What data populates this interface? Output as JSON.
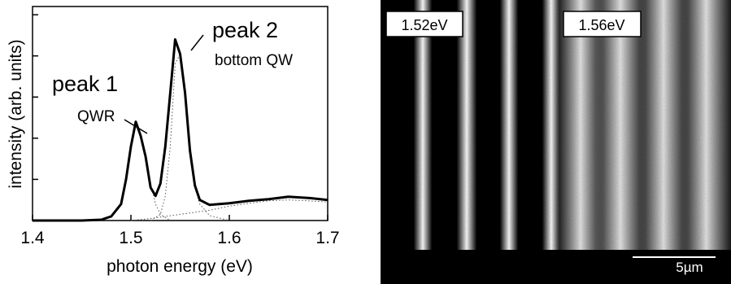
{
  "left_panel": {
    "ylabel": "intensity (arb. units)",
    "xlabel": "photon energy (eV)",
    "annotations": [
      {
        "label": "peak 1",
        "sublabel": "QWR"
      },
      {
        "label": "peak 2",
        "sublabel": "bottom QW"
      }
    ]
  },
  "right_panel": {
    "image_labels": [
      "1.52eV",
      "1.56eV"
    ],
    "scalebar_label": "5µm"
  },
  "chart_data": {
    "type": "line",
    "title": "",
    "xlabel": "photon energy (eV)",
    "ylabel": "intensity (arb. units)",
    "xlim": [
      1.4,
      1.7
    ],
    "ylim": [
      0,
      5.2
    ],
    "x_ticks": [
      1.4,
      1.5,
      1.6,
      1.7
    ],
    "tick_labels": [
      "1.4",
      "1.5",
      "1.6",
      "1.7"
    ],
    "y_tick_values": [
      1,
      2,
      3,
      4,
      5
    ],
    "grid": false,
    "series": [
      {
        "style": "solid-thick",
        "x": [
          1.4,
          1.45,
          1.47,
          1.48,
          1.49,
          1.495,
          1.5,
          1.505,
          1.51,
          1.515,
          1.52,
          1.525,
          1.53,
          1.535,
          1.54,
          1.545,
          1.55,
          1.555,
          1.56,
          1.565,
          1.57,
          1.58,
          1.6,
          1.62,
          1.64,
          1.66,
          1.68,
          1.7
        ],
        "y": [
          0.0,
          0.0,
          0.02,
          0.1,
          0.4,
          1.0,
          1.8,
          2.4,
          2.05,
          1.55,
          0.8,
          0.6,
          0.9,
          1.8,
          3.1,
          4.4,
          4.05,
          3.1,
          1.7,
          0.85,
          0.5,
          0.38,
          0.42,
          0.48,
          0.52,
          0.58,
          0.55,
          0.5
        ]
      },
      {
        "style": "dotted-fit",
        "x": [
          1.47,
          1.48,
          1.49,
          1.495,
          1.5,
          1.505,
          1.51,
          1.515,
          1.52,
          1.525,
          1.53,
          1.54
        ],
        "y": [
          0.0,
          0.1,
          0.4,
          1.0,
          1.8,
          2.4,
          2.05,
          1.5,
          0.9,
          0.4,
          0.15,
          0.0
        ]
      },
      {
        "style": "dotted-fit",
        "x": [
          1.52,
          1.53,
          1.535,
          1.54,
          1.545,
          1.55,
          1.555,
          1.56,
          1.565,
          1.57,
          1.58,
          1.6
        ],
        "y": [
          0.0,
          0.15,
          0.6,
          1.8,
          3.8,
          4.05,
          3.1,
          1.7,
          0.8,
          0.4,
          0.12,
          0.0
        ]
      },
      {
        "style": "dotted-fit",
        "x": [
          1.5,
          1.52,
          1.55,
          1.58,
          1.6,
          1.62,
          1.64,
          1.66,
          1.68,
          1.7
        ],
        "y": [
          0.0,
          0.05,
          0.15,
          0.25,
          0.35,
          0.42,
          0.48,
          0.5,
          0.48,
          0.45
        ]
      }
    ]
  }
}
